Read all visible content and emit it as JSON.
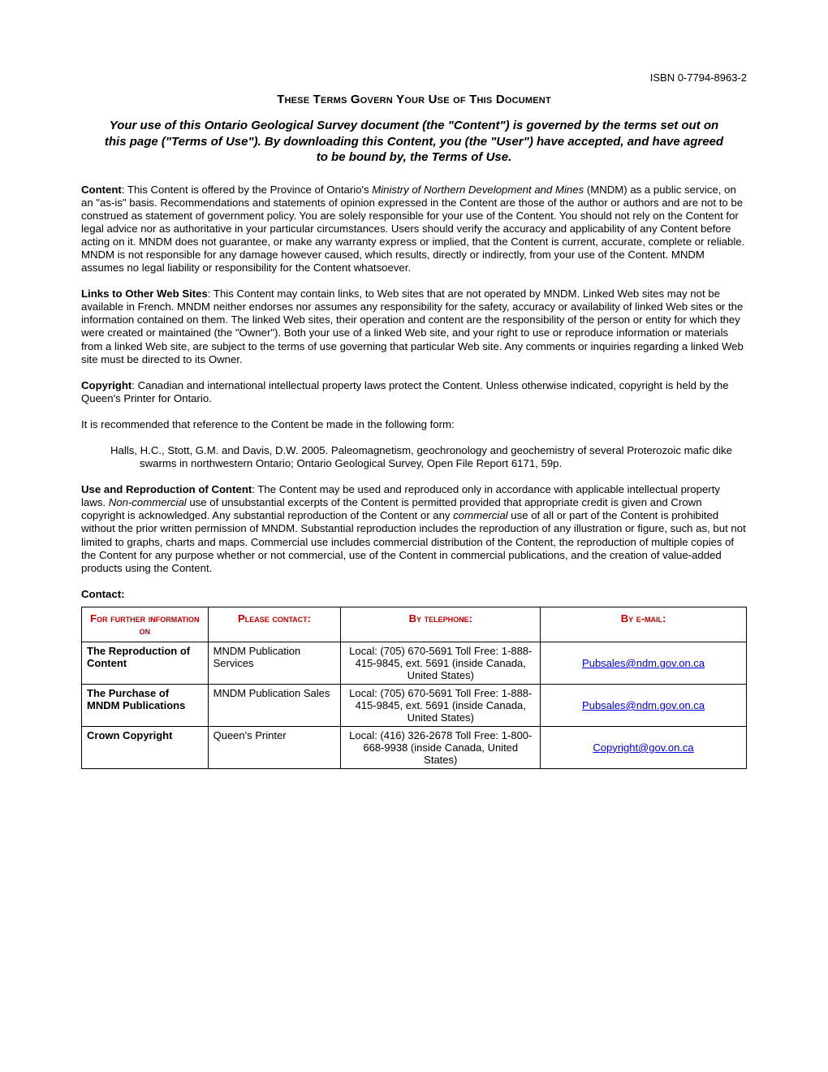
{
  "isbn": "ISBN 0-7794-8963-2",
  "title": "These Terms Govern Your Use of This Document",
  "subtitle": "Your use of this Ontario Geological Survey document (the \"Content\") is governed by the terms set out on this page (\"Terms of Use\"). By downloading this Content, you (the \"User\") have accepted, and have agreed to be bound by, the Terms of Use.",
  "content_label": "Content",
  "content_body_1": ":  This Content is offered by the Province of Ontario's ",
  "content_italic": "Ministry of Northern Development and Mines",
  "content_body_2": " (MNDM) as a public service, on an \"as-is\" basis. Recommendations and statements of opinion expressed in the Content are those of the author or authors and are not to be construed as statement of government policy. You are solely responsible for your use of the Content. You should not rely on the Content for legal advice nor as authoritative in your particular circumstances. Users should verify the accuracy and applicability of any Content before acting on it. MNDM does not guarantee, or make any warranty express or implied, that the Content is current, accurate, complete or reliable. MNDM is not responsible for any damage however caused, which results, directly or indirectly, from your use of the Content. MNDM assumes no legal liability or responsibility for the Content whatsoever.",
  "links_label": "Links to Other Web Sites",
  "links_body": ": This Content may contain links, to Web sites that are not operated by MNDM. Linked Web sites may not be available in French. MNDM neither endorses nor assumes any responsibility for the safety, accuracy or availability of linked Web sites or the information contained on them. The linked Web sites, their operation and content are the responsibility of the person or entity for which they were created or maintained (the \"Owner\"). Both your use of a linked Web site, and your right to use or reproduce information or materials from a linked Web site, are subject to the terms of use governing that particular Web site. Any comments or inquiries regarding a linked Web site must be directed to its Owner.",
  "copyright_label": "Copyright",
  "copyright_body": ":  Canadian and international intellectual property laws protect the Content. Unless otherwise indicated, copyright is held by the Queen's Printer for Ontario.",
  "reference_intro": "It is recommended that reference to the Content be made in the following form:",
  "citation": "Halls, H.C., Stott, G.M. and Davis, D.W. 2005. Paleomagnetism, geochronology and geochemistry of several Proterozoic mafic dike swarms in northwestern Ontario; Ontario Geological Survey, Open File Report 6171, 59p.",
  "use_label": "Use and Reproduction of Content",
  "use_body_1": ": The Content may be used and reproduced only in accordance with applicable intellectual property laws.  ",
  "use_italic_1": "Non-commercial",
  "use_body_2": " use of unsubstantial excerpts of the Content is permitted provided that appropriate credit is given and Crown copyright is acknowledged. Any substantial reproduction of the Content or any ",
  "use_italic_2": "commercial",
  "use_body_3": " use of all or part of the Content is prohibited without the prior written permission of MNDM. Substantial reproduction includes the reproduction of any illustration or figure, such as, but not limited to graphs, charts and maps. Commercial use includes commercial distribution of the Content, the reproduction of multiple copies of the Content for any purpose whether or not commercial, use of the Content in commercial publications, and the creation of value-added products using the Content.",
  "contact_label": "Contact",
  "table": {
    "headers": [
      "For further information on",
      "Please contact:",
      "By telephone:",
      "By e-mail:"
    ],
    "rows": [
      {
        "topic": "The Reproduction of Content",
        "contact": "MNDM Publication Services",
        "phone": "Local: (705) 670-5691\nToll Free: 1-888-415-9845, ext. 5691 (inside Canada, United States)",
        "email": "Pubsales@ndm.gov.on.ca"
      },
      {
        "topic": "The Purchase of MNDM Publications",
        "contact": "MNDM Publication Sales",
        "phone": "Local: (705) 670-5691\nToll Free: 1-888-415-9845, ext. 5691 (inside Canada, United States)",
        "email": "Pubsales@ndm.gov.on.ca"
      },
      {
        "topic": "Crown Copyright",
        "contact": "Queen's Printer",
        "phone": "Local: (416) 326-2678\nToll Free: 1-800-668-9938 (inside Canada, United States)",
        "email": "Copyright@gov.on.ca"
      }
    ]
  }
}
